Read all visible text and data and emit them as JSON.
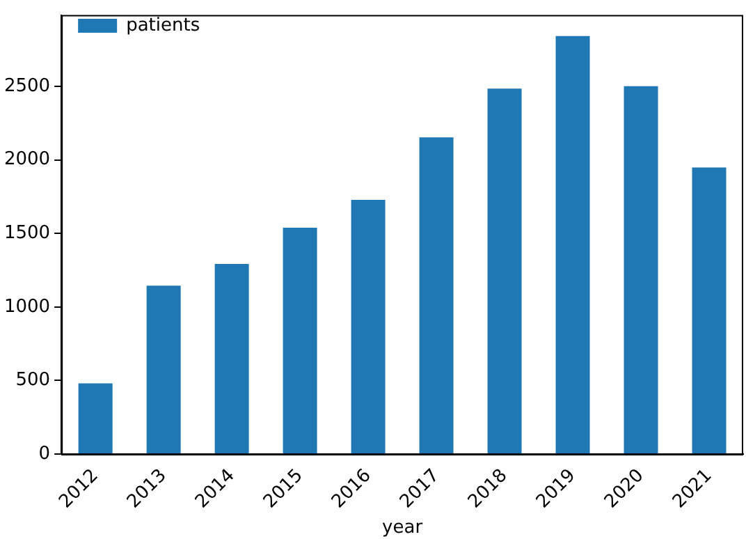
{
  "chart_data": {
    "type": "bar",
    "xlabel": "year",
    "categories": [
      "2012",
      "2013",
      "2014",
      "2015",
      "2016",
      "2017",
      "2018",
      "2019",
      "2020",
      "2021"
    ],
    "series": [
      {
        "name": "patients",
        "color": "#1f77b4",
        "values": [
          481,
          1144,
          1293,
          1539,
          1728,
          2153,
          2485,
          2842,
          2501,
          1949
        ]
      }
    ],
    "ylim": [
      0,
      2985
    ],
    "yticks": [
      0,
      500,
      1000,
      1500,
      2000,
      2500
    ],
    "grid": false,
    "legend": "top left"
  }
}
